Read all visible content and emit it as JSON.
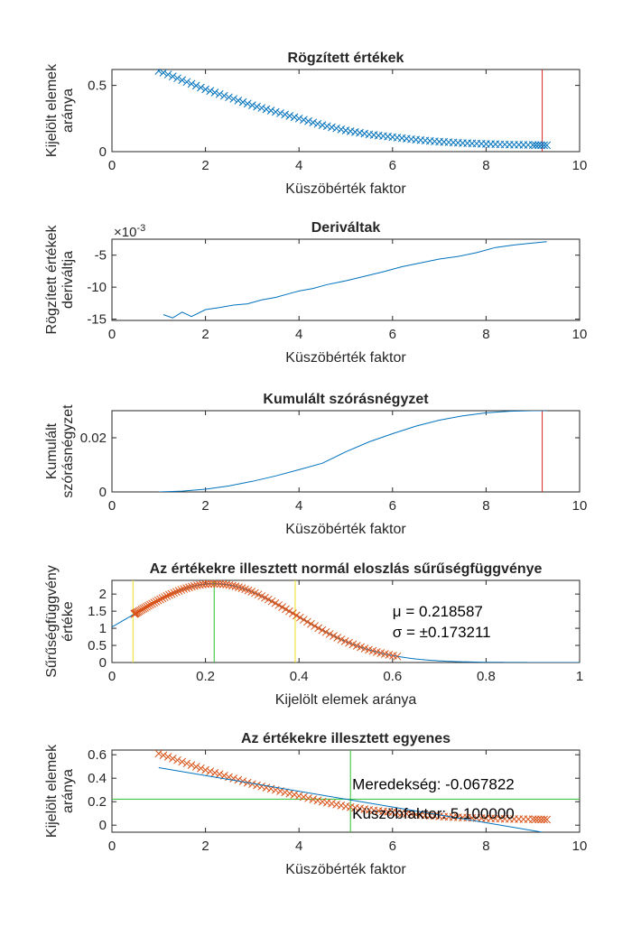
{
  "colors": {
    "blue": "#0072BD",
    "orange": "#D95319",
    "red": "#D62728",
    "green": "#2DBE2D",
    "yellow": "#F0E020"
  },
  "chart_data": [
    {
      "type": "scatter",
      "title": "Rögzített értékek",
      "xlabel": "Küszöbérték faktor",
      "ylabel": [
        "Kijelölt elemek",
        "aránya"
      ],
      "xlim": [
        0,
        10
      ],
      "ylim": [
        0,
        0.62
      ],
      "xticks": [
        0,
        2,
        4,
        6,
        8,
        10
      ],
      "yticks": [
        0,
        0.5
      ],
      "series": [
        {
          "marker": "x",
          "color": "#0072BD",
          "x": [
            1.0,
            1.5,
            2.0,
            2.5,
            3.0,
            3.5,
            4.0,
            4.5,
            5.0,
            5.5,
            6.0,
            6.5,
            7.0,
            7.5,
            8.0,
            8.5,
            9.0,
            9.3
          ],
          "y": [
            0.61,
            0.54,
            0.47,
            0.41,
            0.35,
            0.3,
            0.25,
            0.2,
            0.16,
            0.13,
            0.11,
            0.09,
            0.075,
            0.065,
            0.058,
            0.053,
            0.05,
            0.048
          ]
        }
      ],
      "vlines": [
        {
          "x": 9.2,
          "color": "#D62728"
        }
      ]
    },
    {
      "type": "line",
      "title": "Deriváltak",
      "xlabel": "Küszöbérték faktor",
      "ylabel": [
        "Rögzített értékek",
        "deriváltja"
      ],
      "xlim": [
        0,
        10
      ],
      "ylim": [
        -15.2,
        -2.5
      ],
      "yexponent": "×10",
      "yexponent_power": "-3",
      "xticks": [
        0,
        2,
        4,
        6,
        8,
        10
      ],
      "yticks": [
        -15,
        -10,
        -5
      ],
      "series": [
        {
          "color": "#0072BD",
          "x": [
            1.1,
            1.3,
            1.5,
            1.7,
            2.0,
            2.3,
            2.6,
            2.9,
            3.2,
            3.5,
            3.8,
            4.0,
            4.3,
            4.6,
            5.0,
            5.4,
            5.8,
            6.2,
            6.6,
            7.0,
            7.4,
            7.8,
            8.2,
            8.6,
            9.0,
            9.3
          ],
          "y": [
            -14.3,
            -14.8,
            -13.9,
            -14.6,
            -13.5,
            -13.2,
            -12.8,
            -12.6,
            -12.0,
            -11.6,
            -11.0,
            -10.6,
            -10.2,
            -9.6,
            -9.0,
            -8.3,
            -7.6,
            -6.8,
            -6.2,
            -5.6,
            -5.2,
            -4.6,
            -3.8,
            -3.4,
            -3.1,
            -2.9
          ]
        }
      ]
    },
    {
      "type": "line",
      "title": "Kumulált szórásnégyzet",
      "xlabel": "Küszöbérték faktor",
      "ylabel": [
        "Kumulált",
        "szórásnégyzet"
      ],
      "xlim": [
        0,
        10
      ],
      "ylim": [
        0,
        0.03
      ],
      "xticks": [
        0,
        2,
        4,
        6,
        8,
        10
      ],
      "yticks": [
        0,
        0.02
      ],
      "series": [
        {
          "color": "#0072BD",
          "x": [
            1.0,
            1.5,
            2.0,
            2.5,
            3.0,
            3.5,
            4.0,
            4.5,
            5.0,
            5.5,
            6.0,
            6.5,
            7.0,
            7.5,
            8.0,
            8.5,
            9.0,
            9.3
          ],
          "y": [
            0.0,
            0.0003,
            0.001,
            0.0022,
            0.0039,
            0.0059,
            0.0082,
            0.0106,
            0.0148,
            0.0185,
            0.0215,
            0.0243,
            0.0265,
            0.0281,
            0.0292,
            0.0298,
            0.03,
            0.03
          ]
        }
      ],
      "vlines": [
        {
          "x": 9.2,
          "color": "#D62728"
        }
      ]
    },
    {
      "type": "line",
      "title": "Az értékekre illesztett normál eloszlás sűrűségfüggvénye",
      "xlabel": "Kijelölt elemek aránya",
      "ylabel": [
        "Sűrűségfüggvény",
        "értéke"
      ],
      "xlim": [
        0,
        1
      ],
      "ylim": [
        0,
        2.4
      ],
      "xticks": [
        0,
        0.2,
        0.4,
        0.6,
        0.8,
        1
      ],
      "yticks": [
        0,
        0.5,
        1,
        1.5,
        2
      ],
      "series": [
        {
          "kind": "pdf",
          "color": "#0072BD",
          "mu": 0.218587,
          "sigma": 0.173211
        },
        {
          "kind": "pdf-markers",
          "marker": "x",
          "color": "#D95319",
          "mu": 0.218587,
          "sigma": 0.173211,
          "xmin": 0.048,
          "xmax": 0.61
        }
      ],
      "vlines": [
        {
          "x": 0.045,
          "color": "#F0E020"
        },
        {
          "x": 0.218587,
          "color": "#2DBE2D"
        },
        {
          "x": 0.3918,
          "color": "#F0E020"
        }
      ],
      "annotations": [
        {
          "text": "μ = 0.218587",
          "x": 0.6,
          "y": 1.5
        },
        {
          "text": "σ = ±0.173211",
          "x": 0.6,
          "y": 0.9
        }
      ]
    },
    {
      "type": "line",
      "title": "Az értékekre illesztett egyenes",
      "xlabel": "Küszöbérték faktor",
      "ylabel": [
        "Kijelölt elemek",
        "aránya"
      ],
      "xlim": [
        0,
        10
      ],
      "ylim": [
        -0.06,
        0.64
      ],
      "xticks": [
        0,
        2,
        4,
        6,
        8,
        10
      ],
      "yticks": [
        0,
        0.2,
        0.4,
        0.6
      ],
      "series": [
        {
          "marker": "x",
          "color": "#D95319",
          "x": [
            1.0,
            1.5,
            2.0,
            2.5,
            3.0,
            3.5,
            4.0,
            4.5,
            5.0,
            5.5,
            6.0,
            6.5,
            7.0,
            7.5,
            8.0,
            8.5,
            9.0,
            9.3
          ],
          "y": [
            0.61,
            0.54,
            0.47,
            0.41,
            0.35,
            0.3,
            0.25,
            0.2,
            0.16,
            0.13,
            0.11,
            0.09,
            0.075,
            0.065,
            0.058,
            0.053,
            0.05,
            0.048
          ]
        },
        {
          "color": "#0072BD",
          "x": [
            1.0,
            9.2
          ],
          "y": [
            0.49,
            -0.06
          ]
        }
      ],
      "vlines": [
        {
          "x": 5.1,
          "color": "#2DBE2D"
        }
      ],
      "hlines": [
        {
          "y": 0.222,
          "color": "#2DBE2D"
        }
      ],
      "annotations": [
        {
          "text": "Meredekség: -0.067822",
          "x": 5.1,
          "y": 0.35
        },
        {
          "text": "Küszöbfaktor: 5.100000",
          "x": 5.1,
          "y": 0.1
        }
      ]
    }
  ]
}
